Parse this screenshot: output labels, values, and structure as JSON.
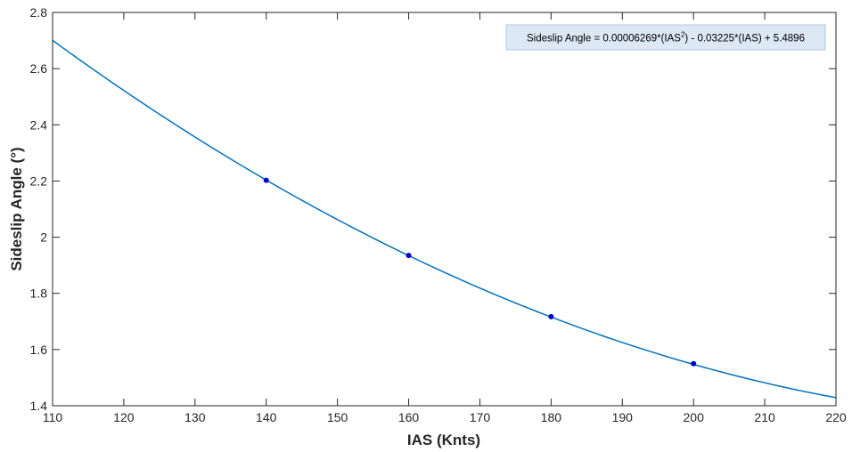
{
  "chart_data": {
    "type": "line",
    "xlabel": "IAS (Knts)",
    "ylabel": "Sideslip Angle (°)",
    "xlim": [
      110,
      220
    ],
    "ylim": [
      1.4,
      2.8
    ],
    "xticks": [
      110,
      120,
      130,
      140,
      150,
      160,
      170,
      180,
      190,
      200,
      210,
      220
    ],
    "yticks": [
      1.4,
      1.6,
      1.8,
      2.0,
      2.2,
      2.4,
      2.6,
      2.8
    ],
    "xtick_labels": [
      "110",
      "120",
      "130",
      "140",
      "150",
      "160",
      "170",
      "180",
      "190",
      "200",
      "210",
      "220"
    ],
    "ytick_labels": [
      "1.4",
      "1.6",
      "1.8",
      "2",
      "2.2",
      "2.4",
      "2.6",
      "2.8"
    ],
    "fit": {
      "coefficients": [
        6.269e-05,
        -0.03225,
        5.4896
      ],
      "color": "#0072bd"
    },
    "points": {
      "x": [
        140,
        160,
        180,
        200
      ],
      "y": [
        2.2026,
        1.9348,
        1.7172,
        1.5496
      ],
      "color": "#0000cc"
    },
    "annotation": {
      "prefix": "Sideslip Angle = 0.00006269*(IAS",
      "superscript": "2",
      "suffix": ") - 0.03225*(IAS) + 5.4896",
      "placement": "top-right",
      "background": "#dde8f5",
      "border": "#b4c6dc"
    },
    "grid": false
  }
}
